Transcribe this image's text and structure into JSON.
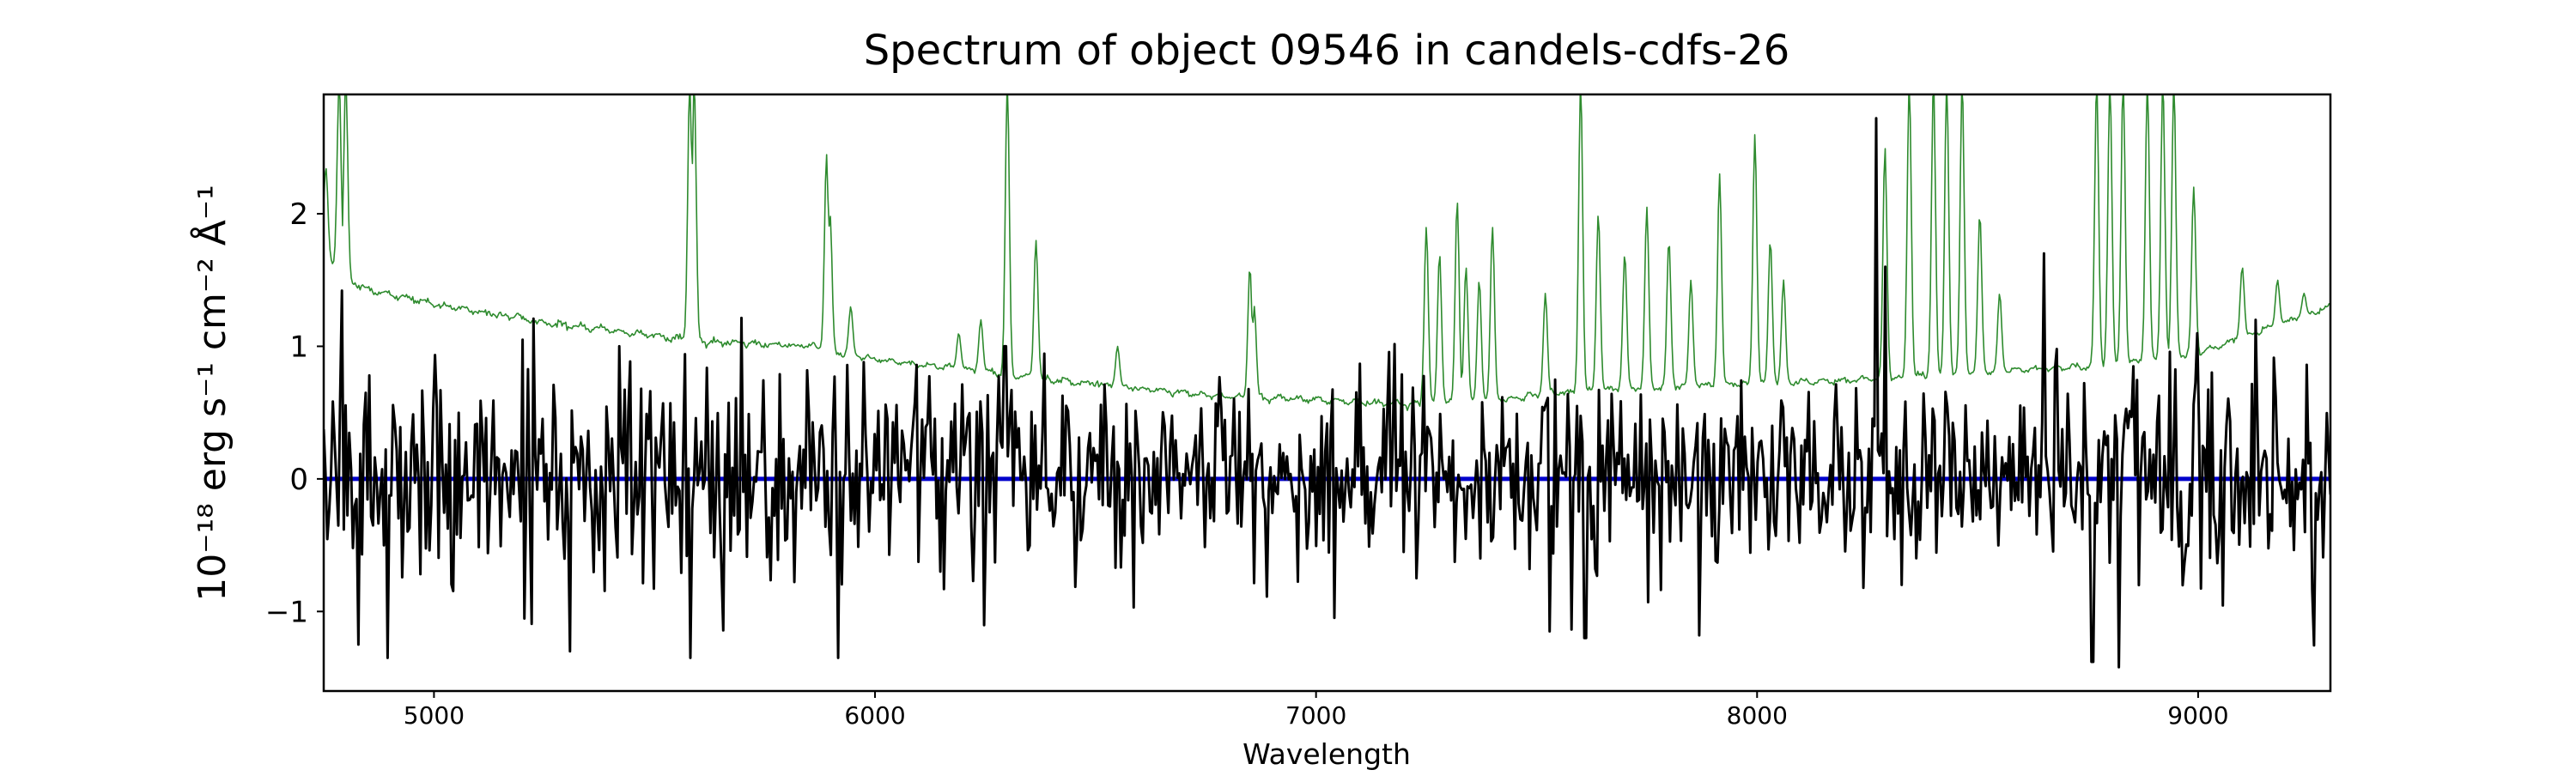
{
  "chart_data": {
    "type": "line",
    "title": "Spectrum of object 09546 in candels-cdfs-26",
    "xlabel": "Wavelength",
    "ylabel": "10⁻¹⁸ erg s⁻¹ cm⁻² Å⁻¹",
    "xlim": [
      4750,
      9300
    ],
    "ylim": [
      -1.6,
      2.9
    ],
    "x_ticks": [
      5000,
      6000,
      7000,
      8000,
      9000
    ],
    "y_ticks": [
      -1,
      0,
      1,
      2
    ],
    "y_tick_labels": [
      "−1",
      "0",
      "1",
      "2"
    ],
    "grid": false,
    "series": [
      {
        "role": "error",
        "color": "#2e8b2e",
        "x_start": 4750,
        "x_end": 9300,
        "continuum": [
          [
            4750,
            1.72
          ],
          [
            4790,
            1.52
          ],
          [
            4850,
            1.43
          ],
          [
            5000,
            1.32
          ],
          [
            5200,
            1.2
          ],
          [
            5400,
            1.12
          ],
          [
            5600,
            1.04
          ],
          [
            5850,
            1.0
          ],
          [
            6000,
            0.9
          ],
          [
            6200,
            0.83
          ],
          [
            6400,
            0.75
          ],
          [
            6600,
            0.68
          ],
          [
            6800,
            0.62
          ],
          [
            7000,
            0.6
          ],
          [
            7200,
            0.56
          ],
          [
            7400,
            0.6
          ],
          [
            7600,
            0.66
          ],
          [
            7800,
            0.7
          ],
          [
            8000,
            0.72
          ],
          [
            8200,
            0.74
          ],
          [
            8400,
            0.78
          ],
          [
            8600,
            0.82
          ],
          [
            8800,
            0.86
          ],
          [
            9000,
            0.95
          ],
          [
            9300,
            1.3
          ]
        ],
        "emission_lines": [
          [
            4755,
            2.35
          ],
          [
            4785,
            3.0
          ],
          [
            4800,
            3.0
          ],
          [
            5190,
            1.25
          ],
          [
            5580,
            3.0
          ],
          [
            5590,
            3.0
          ],
          [
            5890,
            2.45
          ],
          [
            5898,
            2.0
          ],
          [
            5945,
            1.3
          ],
          [
            6300,
            3.0
          ],
          [
            6365,
            1.8
          ],
          [
            6190,
            1.1
          ],
          [
            6240,
            1.2
          ],
          [
            6550,
            1.0
          ],
          [
            6850,
            1.6
          ],
          [
            6860,
            1.3
          ],
          [
            7250,
            1.9
          ],
          [
            7280,
            1.7
          ],
          [
            7320,
            2.1
          ],
          [
            7340,
            1.6
          ],
          [
            7370,
            1.5
          ],
          [
            7400,
            1.9
          ],
          [
            7520,
            1.4
          ],
          [
            7600,
            3.0
          ],
          [
            7640,
            2.0
          ],
          [
            7700,
            1.7
          ],
          [
            7750,
            2.05
          ],
          [
            7800,
            1.8
          ],
          [
            7850,
            1.5
          ],
          [
            7915,
            2.3
          ],
          [
            7995,
            2.6
          ],
          [
            8030,
            1.8
          ],
          [
            8060,
            1.5
          ],
          [
            8290,
            2.5
          ],
          [
            8345,
            3.0
          ],
          [
            8400,
            3.0
          ],
          [
            8430,
            3.0
          ],
          [
            8465,
            3.0
          ],
          [
            8505,
            2.0
          ],
          [
            8550,
            1.4
          ],
          [
            8770,
            3.0
          ],
          [
            8800,
            3.0
          ],
          [
            8830,
            3.0
          ],
          [
            8885,
            3.0
          ],
          [
            8920,
            3.0
          ],
          [
            8945,
            3.0
          ],
          [
            8990,
            2.2
          ],
          [
            9100,
            1.6
          ],
          [
            9180,
            1.5
          ],
          [
            9240,
            1.4
          ]
        ]
      },
      {
        "role": "flux",
        "color": "#000000",
        "x_start": 4750,
        "x_end": 9300,
        "baseline": 0.05,
        "noise_amplitude": 0.5,
        "n_points": 1100,
        "extremes": [
          [
            4790,
            1.42
          ],
          [
            4830,
            -1.25
          ],
          [
            4895,
            -1.35
          ],
          [
            5200,
            1.05
          ],
          [
            5310,
            -1.3
          ],
          [
            5420,
            1.0
          ],
          [
            5580,
            -1.35
          ],
          [
            5915,
            -1.35
          ],
          [
            6295,
            1.0
          ],
          [
            7530,
            -1.15
          ],
          [
            7610,
            -1.2
          ],
          [
            7870,
            -1.18
          ],
          [
            8270,
            2.72
          ],
          [
            8290,
            1.6
          ],
          [
            8650,
            1.7
          ],
          [
            8760,
            -1.38
          ],
          [
            8820,
            -1.42
          ],
          [
            9130,
            1.2
          ]
        ]
      },
      {
        "role": "model",
        "color": "#0000cc",
        "x_start": 4750,
        "x_end": 9300,
        "value": 0.0
      }
    ]
  }
}
